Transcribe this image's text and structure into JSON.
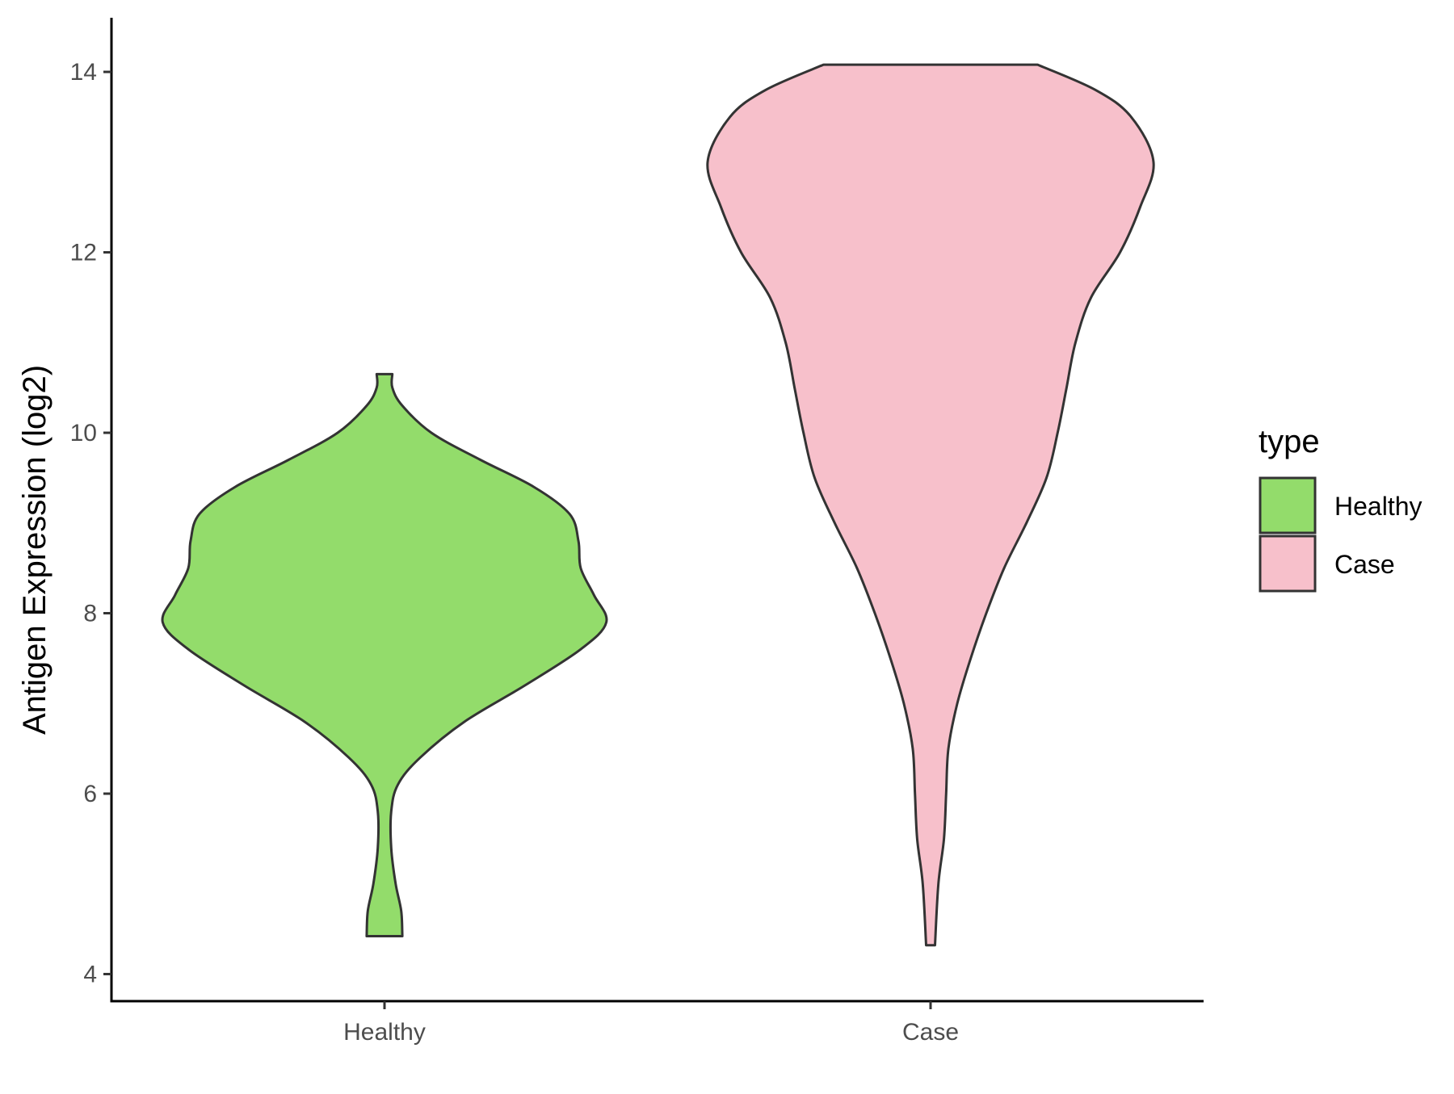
{
  "chart_data": {
    "type": "violin",
    "title": "",
    "xlabel": "",
    "ylabel": "Antigen Expression (log2)",
    "ylim": [
      3.7,
      14.6
    ],
    "y_ticks": [
      4,
      6,
      8,
      10,
      12,
      14
    ],
    "categories": [
      "Healthy",
      "Case"
    ],
    "grid": false,
    "legend": {
      "title": "type",
      "position": "right",
      "entries": [
        {
          "label": "Healthy",
          "color": "#93DC6B"
        },
        {
          "label": "Case",
          "color": "#F7C0CB"
        }
      ]
    },
    "series": [
      {
        "name": "Healthy",
        "color": "#93DC6B",
        "min": 4.42,
        "max": 10.65,
        "density_profile": [
          [
            4.42,
            0.08
          ],
          [
            4.7,
            0.075
          ],
          [
            5.0,
            0.05
          ],
          [
            5.4,
            0.03
          ],
          [
            5.8,
            0.03
          ],
          [
            6.1,
            0.06
          ],
          [
            6.4,
            0.16
          ],
          [
            6.8,
            0.36
          ],
          [
            7.2,
            0.63
          ],
          [
            7.6,
            0.88
          ],
          [
            7.9,
            0.995
          ],
          [
            8.2,
            0.94
          ],
          [
            8.5,
            0.88
          ],
          [
            8.8,
            0.87
          ],
          [
            9.1,
            0.83
          ],
          [
            9.4,
            0.67
          ],
          [
            9.7,
            0.43
          ],
          [
            10.0,
            0.21
          ],
          [
            10.3,
            0.08
          ],
          [
            10.5,
            0.035
          ],
          [
            10.65,
            0.035
          ]
        ]
      },
      {
        "name": "Case",
        "color": "#F7C0CB",
        "min": 4.32,
        "max": 14.08,
        "density_profile": [
          [
            4.32,
            0.02
          ],
          [
            5.0,
            0.035
          ],
          [
            5.5,
            0.06
          ],
          [
            6.0,
            0.07
          ],
          [
            6.5,
            0.08
          ],
          [
            7.0,
            0.12
          ],
          [
            7.5,
            0.18
          ],
          [
            8.0,
            0.25
          ],
          [
            8.5,
            0.33
          ],
          [
            9.0,
            0.43
          ],
          [
            9.5,
            0.52
          ],
          [
            10.0,
            0.57
          ],
          [
            10.5,
            0.61
          ],
          [
            11.0,
            0.65
          ],
          [
            11.5,
            0.72
          ],
          [
            12.0,
            0.85
          ],
          [
            12.5,
            0.94
          ],
          [
            13.0,
            1.0
          ],
          [
            13.5,
            0.9
          ],
          [
            13.8,
            0.74
          ],
          [
            14.08,
            0.48
          ]
        ]
      }
    ]
  }
}
